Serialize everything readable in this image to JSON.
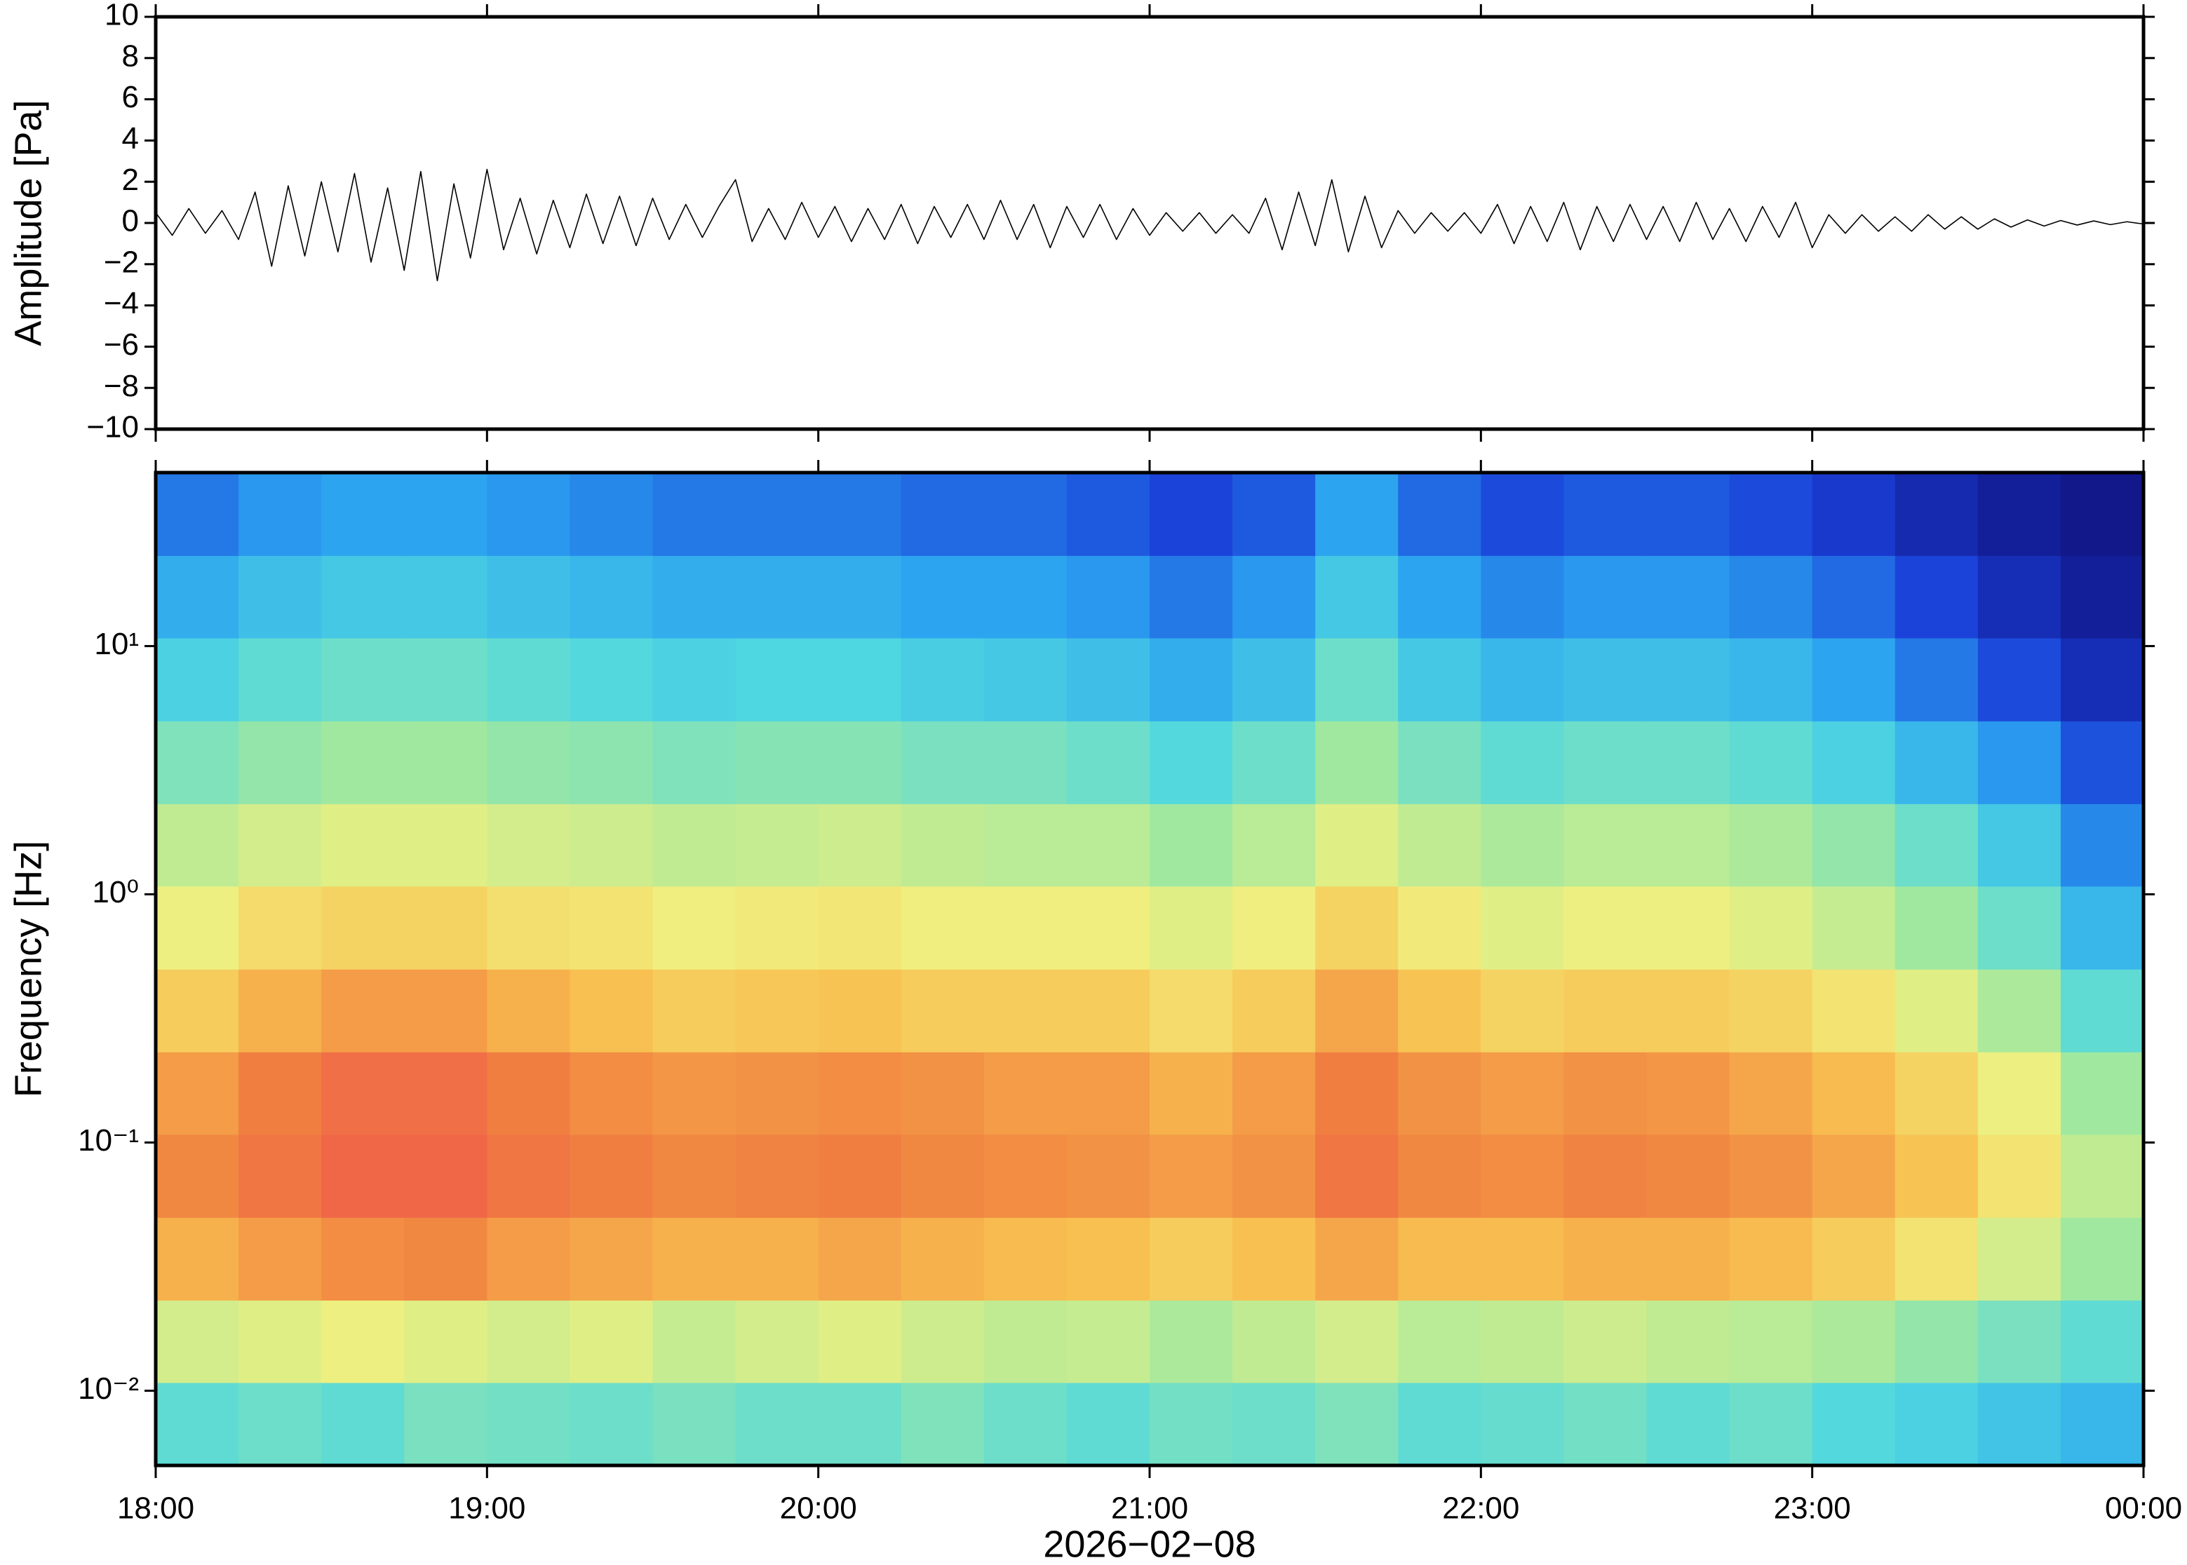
{
  "chart_data": [
    {
      "type": "line",
      "ylabel": "Amplitude [Pa]",
      "x": [
        18,
        18.05,
        18.1,
        18.15,
        18.2,
        18.25,
        18.3,
        18.35,
        18.4,
        18.45,
        18.5,
        18.55,
        18.6,
        18.65,
        18.7,
        18.75,
        18.8,
        18.85,
        18.9,
        18.95,
        19,
        19.05,
        19.1,
        19.15,
        19.2,
        19.25,
        19.3,
        19.35,
        19.4,
        19.45,
        19.5,
        19.55,
        19.6,
        19.65,
        19.7,
        19.75,
        19.8,
        19.85,
        19.9,
        19.95,
        20,
        20.05,
        20.1,
        20.15,
        20.2,
        20.25,
        20.3,
        20.35,
        20.4,
        20.45,
        20.5,
        20.55,
        20.6,
        20.65,
        20.7,
        20.75,
        20.8,
        20.85,
        20.9,
        20.95,
        21,
        21.05,
        21.1,
        21.15,
        21.2,
        21.25,
        21.3,
        21.35,
        21.4,
        21.45,
        21.5,
        21.55,
        21.6,
        21.65,
        21.7,
        21.75,
        21.8,
        21.85,
        21.9,
        21.95,
        22,
        22.05,
        22.1,
        22.15,
        22.2,
        22.25,
        22.3,
        22.35,
        22.4,
        22.45,
        22.5,
        22.55,
        22.6,
        22.65,
        22.7,
        22.75,
        22.8,
        22.85,
        22.9,
        22.95,
        23,
        23.05,
        23.1,
        23.15,
        23.2,
        23.25,
        23.3,
        23.35,
        23.4,
        23.45,
        23.5,
        23.55,
        23.6,
        23.65,
        23.7,
        23.75,
        23.8,
        23.85,
        23.9,
        23.95,
        24
      ],
      "series": [
        {
          "name": "Amplitude",
          "color": "#000000",
          "values": [
            0.5,
            -0.6,
            0.7,
            -0.5,
            0.6,
            -0.8,
            1.5,
            -2.1,
            1.8,
            -1.6,
            2.0,
            -1.4,
            2.4,
            -1.9,
            1.7,
            -2.3,
            2.5,
            -2.8,
            1.9,
            -1.7,
            2.6,
            -1.3,
            1.2,
            -1.5,
            1.1,
            -1.2,
            1.4,
            -1.0,
            1.3,
            -1.1,
            1.2,
            -0.8,
            0.9,
            -0.7,
            0.8,
            2.1,
            -0.9,
            0.7,
            -0.8,
            1.0,
            -0.7,
            0.8,
            -0.9,
            0.7,
            -0.8,
            0.9,
            -1.0,
            0.8,
            -0.7,
            0.9,
            -0.8,
            1.1,
            -0.8,
            0.9,
            -1.2,
            0.8,
            -0.7,
            0.9,
            -0.8,
            0.7,
            -0.6,
            0.5,
            -0.4,
            0.5,
            -0.5,
            0.4,
            -0.5,
            1.2,
            -1.3,
            1.5,
            -1.1,
            2.1,
            -1.4,
            1.3,
            -1.2,
            0.6,
            -0.5,
            0.5,
            -0.4,
            0.5,
            -0.5,
            0.9,
            -1.0,
            0.8,
            -0.9,
            1.0,
            -1.3,
            0.8,
            -0.9,
            0.9,
            -0.8,
            0.8,
            -0.9,
            1.0,
            -0.8,
            0.7,
            -0.9,
            0.8,
            -0.7,
            1.0,
            -1.2,
            0.4,
            -0.5,
            0.4,
            -0.4,
            0.3,
            -0.4,
            0.4,
            -0.3,
            0.3,
            -0.3,
            0.2,
            -0.2,
            0.15,
            -0.15,
            0.12,
            -0.1,
            0.1,
            -0.08,
            0.06,
            -0.05
          ]
        }
      ],
      "xlim": [
        18,
        24
      ],
      "xticks": [
        18,
        19,
        20,
        21,
        22,
        23,
        24
      ],
      "ylim": [
        -10,
        10
      ],
      "yticks": [
        10,
        8,
        6,
        4,
        2,
        0,
        {
          "value": -2,
          "label": "−2"
        },
        {
          "value": -4,
          "label": "−4"
        },
        {
          "value": -6,
          "label": "−6"
        },
        {
          "value": -8,
          "label": "−8"
        },
        {
          "value": -10,
          "label": "−10"
        }
      ]
    },
    {
      "type": "heatmap",
      "ylabel": "Frequency [Hz]",
      "xlabel": "2026−02−08",
      "log_y": true,
      "x_bins": [
        18,
        18.25,
        18.5,
        18.75,
        19,
        19.25,
        19.5,
        19.75,
        20,
        20.25,
        20.5,
        20.75,
        21,
        21.25,
        21.5,
        21.75,
        22,
        22.25,
        22.5,
        22.75,
        23,
        23.25,
        23.5,
        23.75,
        24
      ],
      "y_bins": [
        0.005,
        0.0108,
        0.0232,
        0.05,
        0.108,
        0.232,
        0.5,
        1.08,
        2.32,
        5,
        10.8,
        23.2,
        50
      ],
      "colormap": [
        "#10107a",
        "#1a3fd8",
        "#2aa0f0",
        "#50d8e0",
        "#a0e8a0",
        "#f0f080",
        "#f8c050",
        "#f08040",
        "#f05050"
      ],
      "z": [
        [
          0.4,
          0.42,
          0.4,
          0.44,
          0.43,
          0.42,
          0.44,
          0.42,
          0.42,
          0.45,
          0.42,
          0.4,
          0.43,
          0.42,
          0.45,
          0.4,
          0.41,
          0.43,
          0.4,
          0.42,
          0.38,
          0.36,
          0.33,
          0.3
        ],
        [
          0.58,
          0.6,
          0.62,
          0.6,
          0.58,
          0.6,
          0.56,
          0.58,
          0.6,
          0.57,
          0.55,
          0.56,
          0.52,
          0.55,
          0.58,
          0.54,
          0.55,
          0.57,
          0.55,
          0.54,
          0.52,
          0.48,
          0.44,
          0.4
        ],
        [
          0.78,
          0.82,
          0.85,
          0.86,
          0.82,
          0.8,
          0.78,
          0.78,
          0.8,
          0.78,
          0.76,
          0.75,
          0.72,
          0.75,
          0.8,
          0.76,
          0.76,
          0.78,
          0.78,
          0.76,
          0.72,
          0.66,
          0.58,
          0.5
        ],
        [
          0.86,
          0.9,
          0.94,
          0.94,
          0.9,
          0.88,
          0.86,
          0.87,
          0.88,
          0.86,
          0.85,
          0.84,
          0.82,
          0.84,
          0.9,
          0.86,
          0.85,
          0.87,
          0.86,
          0.84,
          0.8,
          0.74,
          0.66,
          0.55
        ],
        [
          0.82,
          0.88,
          0.92,
          0.92,
          0.88,
          0.85,
          0.83,
          0.84,
          0.85,
          0.84,
          0.82,
          0.82,
          0.78,
          0.82,
          0.88,
          0.84,
          0.82,
          0.84,
          0.83,
          0.8,
          0.76,
          0.7,
          0.62,
          0.5
        ],
        [
          0.72,
          0.78,
          0.82,
          0.82,
          0.78,
          0.75,
          0.72,
          0.73,
          0.74,
          0.72,
          0.72,
          0.72,
          0.68,
          0.72,
          0.8,
          0.74,
          0.7,
          0.72,
          0.72,
          0.7,
          0.66,
          0.6,
          0.52,
          0.4
        ],
        [
          0.62,
          0.68,
          0.7,
          0.7,
          0.67,
          0.66,
          0.63,
          0.64,
          0.65,
          0.63,
          0.63,
          0.63,
          0.6,
          0.63,
          0.7,
          0.64,
          0.6,
          0.62,
          0.62,
          0.6,
          0.56,
          0.5,
          0.42,
          0.3
        ],
        [
          0.55,
          0.58,
          0.6,
          0.6,
          0.58,
          0.57,
          0.55,
          0.56,
          0.57,
          0.55,
          0.54,
          0.54,
          0.5,
          0.54,
          0.6,
          0.55,
          0.52,
          0.54,
          0.54,
          0.52,
          0.48,
          0.42,
          0.34,
          0.22
        ],
        [
          0.45,
          0.48,
          0.5,
          0.5,
          0.48,
          0.47,
          0.45,
          0.46,
          0.46,
          0.44,
          0.44,
          0.42,
          0.38,
          0.42,
          0.5,
          0.44,
          0.4,
          0.42,
          0.42,
          0.4,
          0.36,
          0.3,
          0.24,
          0.15
        ],
        [
          0.36,
          0.4,
          0.42,
          0.42,
          0.4,
          0.38,
          0.36,
          0.37,
          0.37,
          0.35,
          0.34,
          0.32,
          0.28,
          0.32,
          0.42,
          0.34,
          0.3,
          0.32,
          0.32,
          0.3,
          0.26,
          0.2,
          0.14,
          0.08
        ],
        [
          0.28,
          0.32,
          0.34,
          0.34,
          0.32,
          0.3,
          0.28,
          0.28,
          0.28,
          0.26,
          0.26,
          0.24,
          0.2,
          0.24,
          0.34,
          0.26,
          0.22,
          0.24,
          0.24,
          0.22,
          0.18,
          0.13,
          0.08,
          0.04
        ],
        [
          0.2,
          0.24,
          0.26,
          0.26,
          0.24,
          0.22,
          0.2,
          0.2,
          0.2,
          0.18,
          0.18,
          0.16,
          0.13,
          0.16,
          0.26,
          0.18,
          0.14,
          0.16,
          0.16,
          0.14,
          0.11,
          0.07,
          0.04,
          0.02
        ]
      ],
      "xlim": [
        18,
        24
      ],
      "xticks": [
        {
          "value": 18,
          "label": "18:00"
        },
        {
          "value": 19,
          "label": "19:00"
        },
        {
          "value": 20,
          "label": "20:00"
        },
        {
          "value": 21,
          "label": "21:00"
        },
        {
          "value": 22,
          "label": "22:00"
        },
        {
          "value": 23,
          "label": "23:00"
        },
        {
          "value": 24,
          "label": "00:00"
        }
      ],
      "ylim": [
        0.005,
        50
      ],
      "yticks": [
        {
          "value": 0.01,
          "label": "10⁻²"
        },
        {
          "value": 0.1,
          "label": "10⁻¹"
        },
        {
          "value": 1,
          "label": "10⁰"
        },
        {
          "value": 10,
          "label": "10¹"
        }
      ]
    }
  ]
}
